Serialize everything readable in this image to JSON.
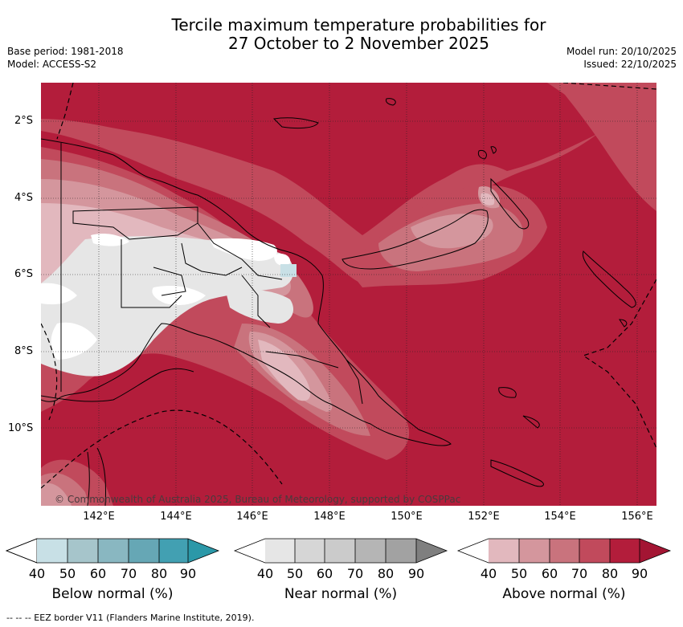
{
  "header": {
    "title_line1": "Tercile maximum temperature probabilities for",
    "title_line2": "27 October to 2 November 2025",
    "base_period": "Base period: 1981-2018",
    "model": "Model: ACCESS-S2",
    "model_run": "Model run: 20/10/2025",
    "issued": "Issued: 22/10/2025"
  },
  "map": {
    "lat_labels": [
      "2°S",
      "4°S",
      "6°S",
      "8°S",
      "10°S"
    ],
    "lon_labels": [
      "142°E",
      "144°E",
      "146°E",
      "148°E",
      "150°E",
      "152°E",
      "154°E",
      "156°E"
    ],
    "copyright": "© Commonwealth of Australia 2025, Bureau of Meteorology, supported by COSPPac",
    "colors": {
      "above_90": "#b31d3b",
      "above_80": "#c14a5c",
      "above_70": "#c9737d",
      "above_60": "#d4969d",
      "above_50": "#e2b8be",
      "near_40": "#e6e6e6",
      "below_40": "#c8e0e6"
    }
  },
  "legend": {
    "ticks": [
      "40",
      "50",
      "60",
      "70",
      "80",
      "90"
    ],
    "below": {
      "title": "Below normal (%)",
      "colors": [
        "#c8e0e6",
        "#a6c5cb",
        "#89b7c1",
        "#66a7b5",
        "#42a0b2",
        "#2b98a8"
      ]
    },
    "near": {
      "title": "Near normal (%)",
      "colors": [
        "#e6e6e6",
        "#d6d6d6",
        "#cbcbcb",
        "#b5b5b5",
        "#a2a2a2",
        "#7f7f7f"
      ]
    },
    "above": {
      "title": "Above normal (%)",
      "colors": [
        "#e2b8be",
        "#d4969d",
        "#c9737d",
        "#c14a5c",
        "#b31d3b",
        "#a31533"
      ]
    }
  },
  "footnote": "-- -- -- EEZ border V11 (Flanders Marine Institute, 2019)."
}
